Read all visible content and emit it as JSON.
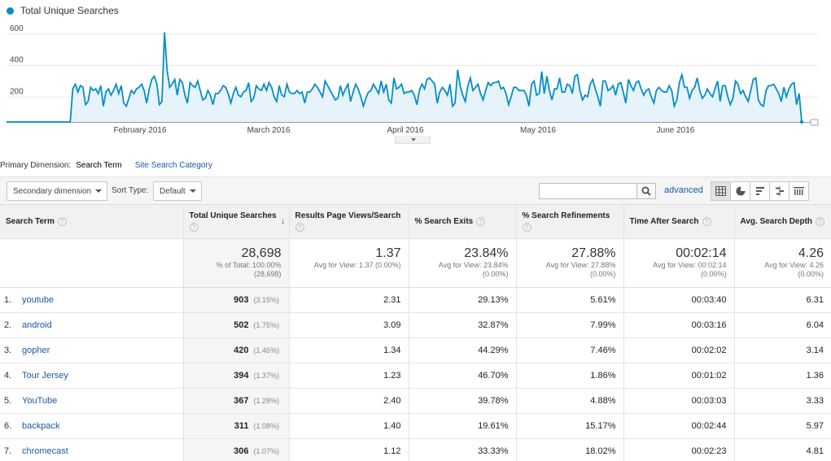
{
  "chart_data": {
    "type": "line",
    "series": [
      {
        "name": "Total Unique Searches",
        "color": "#058dc7"
      }
    ],
    "legend_label": "Total Unique Searches",
    "y_ticks": [
      "600",
      "400",
      "200"
    ],
    "x_ticks": [
      "February 2016",
      "March 2016",
      "April 2016",
      "May 2016",
      "June 2016"
    ],
    "values": [
      0,
      0,
      0,
      0,
      0,
      0,
      0,
      0,
      0,
      0,
      0,
      0,
      0,
      0,
      0,
      0,
      0,
      0,
      0,
      0,
      0,
      0,
      0,
      0,
      0,
      0,
      210,
      240,
      190,
      230,
      220,
      110,
      130,
      220,
      200,
      210,
      180,
      230,
      100,
      190,
      210,
      170,
      200,
      240,
      180,
      230,
      120,
      100,
      150,
      200,
      180,
      210,
      220,
      240,
      200,
      120,
      210,
      270,
      290,
      240,
      110,
      130,
      570,
      330,
      220,
      240,
      270,
      170,
      270,
      250,
      170,
      120,
      250,
      230,
      220,
      260,
      200,
      140,
      150,
      200,
      170,
      110,
      180,
      180,
      200,
      230,
      220,
      180,
      120,
      180,
      220,
      170,
      160,
      190,
      200,
      250,
      130,
      150,
      230,
      210,
      200,
      240,
      200,
      250,
      220,
      160,
      130,
      230,
      170,
      160,
      240,
      190,
      180,
      180,
      200,
      180,
      190,
      120,
      190,
      190,
      210,
      240,
      220,
      190,
      160,
      260,
      230,
      200,
      170,
      140,
      150,
      230,
      170,
      210,
      240,
      130,
      190,
      240,
      210,
      160,
      100,
      150,
      190,
      200,
      240,
      210,
      180,
      260,
      190,
      240,
      140,
      120,
      280,
      210,
      220,
      240,
      180,
      190,
      190,
      200,
      170,
      110,
      200,
      240,
      210,
      270,
      280,
      260,
      240,
      120,
      190,
      220,
      200,
      170,
      240,
      100,
      120,
      330,
      230,
      170,
      130,
      230,
      280,
      200,
      220,
      240,
      180,
      140,
      200,
      250,
      230,
      250,
      250,
      260,
      210,
      220,
      180,
      110,
      160,
      220,
      220,
      200,
      200,
      200,
      170,
      100,
      240,
      260,
      170,
      180,
      320,
      180,
      290,
      200,
      140,
      210,
      210,
      280,
      190,
      190,
      240,
      230,
      180,
      290,
      300,
      200,
      140,
      170,
      160,
      240,
      270,
      210,
      160,
      100,
      260,
      260,
      200,
      210,
      230,
      170,
      240,
      250,
      190,
      120,
      270,
      230,
      200,
      250,
      260,
      210,
      170,
      200,
      210,
      160,
      120,
      200,
      220,
      200,
      190,
      190,
      230,
      200,
      100,
      140,
      250,
      300,
      220,
      220,
      150,
      200,
      220,
      280,
      200,
      150,
      170,
      210,
      180,
      160,
      210,
      260,
      130,
      230,
      230,
      160,
      110,
      150,
      260,
      240,
      180,
      200,
      160,
      130,
      200,
      270,
      280,
      140,
      110,
      100,
      200,
      230,
      230,
      240,
      210,
      180,
      130,
      220,
      160,
      210,
      240,
      250,
      110,
      180,
      0
    ],
    "ylim": [
      0,
      640
    ]
  },
  "primary_dimension": {
    "label": "Primary Dimension:",
    "active": "Search Term",
    "other": "Site Search Category"
  },
  "toolbar": {
    "secondary_dimension": "Secondary dimension",
    "sort_type_label": "Sort Type:",
    "sort_type_value": "Default",
    "search_value": "",
    "advanced": "advanced",
    "view_icons": [
      "table-view-icon",
      "pie-view-icon",
      "performance-view-icon",
      "comparison-view-icon",
      "pivot-view-icon"
    ]
  },
  "columns": {
    "term": "Search Term",
    "uniq": "Total Unique Searches",
    "rpv": "Results Page Views/Search",
    "exits": "% Search Exits",
    "refine": "% Search Refinements",
    "time": "Time After Search",
    "depth": "Avg. Search Depth"
  },
  "totals": {
    "uniq": {
      "big": "28,698",
      "l1": "% of Total: 100.00%",
      "l2": "(28,698)"
    },
    "rpv": {
      "big": "1.37",
      "l1": "Avg for View: 1.37 (0.00%)",
      "l2": ""
    },
    "exits": {
      "big": "23.84%",
      "l1": "Avg for View: 23.84%",
      "l2": "(0.00%)"
    },
    "refine": {
      "big": "27.88%",
      "l1": "Avg for View: 27.88%",
      "l2": "(0.00%)"
    },
    "time": {
      "big": "00:02:14",
      "l1": "Avg for View: 00:02:14",
      "l2": "(0.00%)"
    },
    "depth": {
      "big": "4.26",
      "l1": "Avg for View: 4.26",
      "l2": "(0.00%)"
    }
  },
  "rows": [
    {
      "idx": "1.",
      "term": "youtube",
      "uniq": "903",
      "pct": "(3.15%)",
      "rpv": "2.31",
      "exits": "29.13%",
      "refine": "5.61%",
      "time": "00:03:40",
      "depth": "6.31"
    },
    {
      "idx": "2.",
      "term": "android",
      "uniq": "502",
      "pct": "(1.75%)",
      "rpv": "3.09",
      "exits": "32.87%",
      "refine": "7.99%",
      "time": "00:03:16",
      "depth": "6.04"
    },
    {
      "idx": "3.",
      "term": "gopher",
      "uniq": "420",
      "pct": "(1.46%)",
      "rpv": "1.34",
      "exits": "44.29%",
      "refine": "7.46%",
      "time": "00:02:02",
      "depth": "3.14"
    },
    {
      "idx": "4.",
      "term": "Tour Jersey",
      "uniq": "394",
      "pct": "(1.37%)",
      "rpv": "1.23",
      "exits": "46.70%",
      "refine": "1.86%",
      "time": "00:01:02",
      "depth": "1.36"
    },
    {
      "idx": "5.",
      "term": "YouTube",
      "uniq": "367",
      "pct": "(1.28%)",
      "rpv": "2.40",
      "exits": "39.78%",
      "refine": "4.88%",
      "time": "00:03:03",
      "depth": "3.33"
    },
    {
      "idx": "6.",
      "term": "backpack",
      "uniq": "311",
      "pct": "(1.08%)",
      "rpv": "1.40",
      "exits": "19.61%",
      "refine": "15.17%",
      "time": "00:02:44",
      "depth": "5.97"
    },
    {
      "idx": "7.",
      "term": "chromecast",
      "uniq": "306",
      "pct": "(1.07%)",
      "rpv": "1.12",
      "exits": "33.33%",
      "refine": "18.02%",
      "time": "00:02:23",
      "depth": "4.81"
    }
  ]
}
